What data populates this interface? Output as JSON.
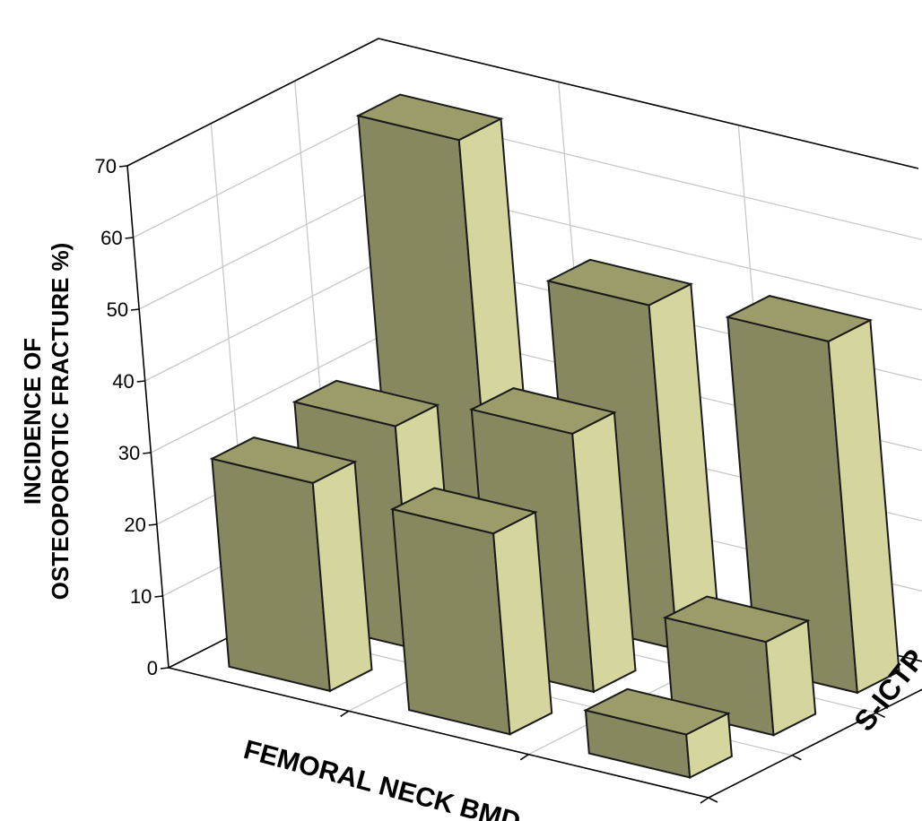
{
  "chart_data": {
    "type": "bar",
    "projection": "3d",
    "title": "",
    "xlabel": "FEMORAL NECK BMD",
    "zlabel": "S-ICTP",
    "ylabel_lines": [
      "INCIDENCE OF",
      "OSTEOPOROTIC FRACTURE %)"
    ],
    "ylim": [
      0,
      70
    ],
    "yticks": [
      0,
      10,
      20,
      30,
      40,
      50,
      60,
      70
    ],
    "grid": true,
    "x_categories": 3,
    "z_categories": 3,
    "bars": [
      {
        "x": 0,
        "z": 0,
        "value": 29
      },
      {
        "x": 1,
        "z": 0,
        "value": 28
      },
      {
        "x": 2,
        "z": 0,
        "value": 6
      },
      {
        "x": 0,
        "z": 1,
        "value": 31
      },
      {
        "x": 1,
        "z": 1,
        "value": 36
      },
      {
        "x": 2,
        "z": 1,
        "value": 13
      },
      {
        "x": 0,
        "z": 2,
        "value": 65
      },
      {
        "x": 1,
        "z": 2,
        "value": 48
      },
      {
        "x": 2,
        "z": 2,
        "value": 49
      }
    ],
    "colors": {
      "front": "#878760",
      "side": "#d5d59e",
      "top": "#9c9c6a",
      "grid": "#c8c8c8"
    }
  }
}
